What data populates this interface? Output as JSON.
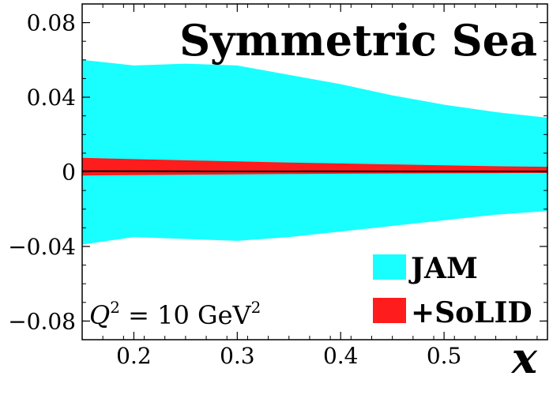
{
  "chart_data": {
    "type": "area",
    "title": "Symmetric Sea",
    "xlabel": "x",
    "ylabel": "",
    "xlim": [
      0.15,
      0.6
    ],
    "ylim": [
      -0.09,
      0.09
    ],
    "x_ticks": [
      0.2,
      0.3,
      0.4,
      0.5
    ],
    "x_tick_labels": [
      "0.2",
      "0.3",
      "0.4",
      "0.5"
    ],
    "y_ticks": [
      0.08,
      0.04,
      0,
      -0.04,
      -0.08
    ],
    "y_tick_labels": [
      "0.08",
      "0.04",
      "0",
      "−0.04",
      "−0.08"
    ],
    "annotation": {
      "main": "Q",
      "sup1": "2",
      "rest": " = 10 GeV",
      "sup2": "2"
    },
    "legend_position": "bottom-right",
    "grid": false,
    "series": [
      {
        "name": "JAM",
        "color": "#19ffff",
        "x": [
          0.15,
          0.2,
          0.25,
          0.3,
          0.35,
          0.4,
          0.45,
          0.5,
          0.55,
          0.6
        ],
        "upper": [
          0.06,
          0.057,
          0.058,
          0.057,
          0.052,
          0.047,
          0.041,
          0.036,
          0.032,
          0.029
        ],
        "lower": [
          -0.039,
          -0.035,
          -0.036,
          -0.037,
          -0.035,
          -0.032,
          -0.029,
          -0.026,
          -0.023,
          -0.021
        ]
      },
      {
        "name": "+SoLID",
        "color": "#ff1c1c",
        "x": [
          0.15,
          0.2,
          0.25,
          0.3,
          0.35,
          0.4,
          0.45,
          0.5,
          0.55,
          0.6
        ],
        "upper": [
          0.0075,
          0.0068,
          0.0062,
          0.0056,
          0.005,
          0.0045,
          0.004,
          0.0035,
          0.003,
          0.0027
        ],
        "lower": [
          -0.002,
          -0.0018,
          -0.0016,
          -0.0014,
          -0.0012,
          -0.001,
          -0.0009,
          -0.0008,
          -0.0007,
          -0.0006
        ]
      }
    ],
    "central_line": {
      "x": [
        0.15,
        0.6
      ],
      "y": [
        0.0003,
        0.0002
      ],
      "color": "#000000"
    }
  }
}
